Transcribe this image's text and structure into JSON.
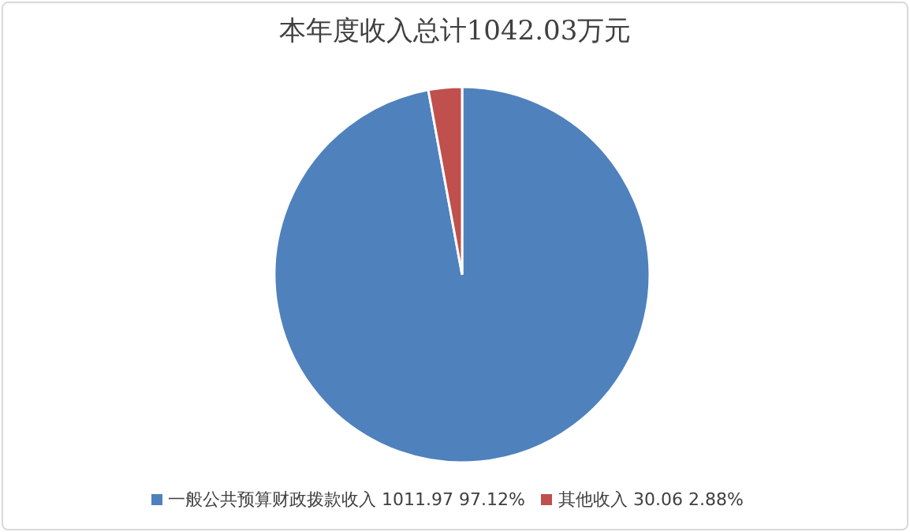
{
  "chart_data": {
    "type": "pie",
    "title": "本年度收入总计1042.03万元",
    "categories": [
      "一般公共预算财政拨款收入",
      "其他收入"
    ],
    "values": [
      1011.97,
      30.06
    ],
    "value_labels": [
      "1011.97 97.12%",
      "30.06 2.88%"
    ],
    "colors": [
      "#4f81bd",
      "#c0504d"
    ],
    "legend": "bottom"
  }
}
